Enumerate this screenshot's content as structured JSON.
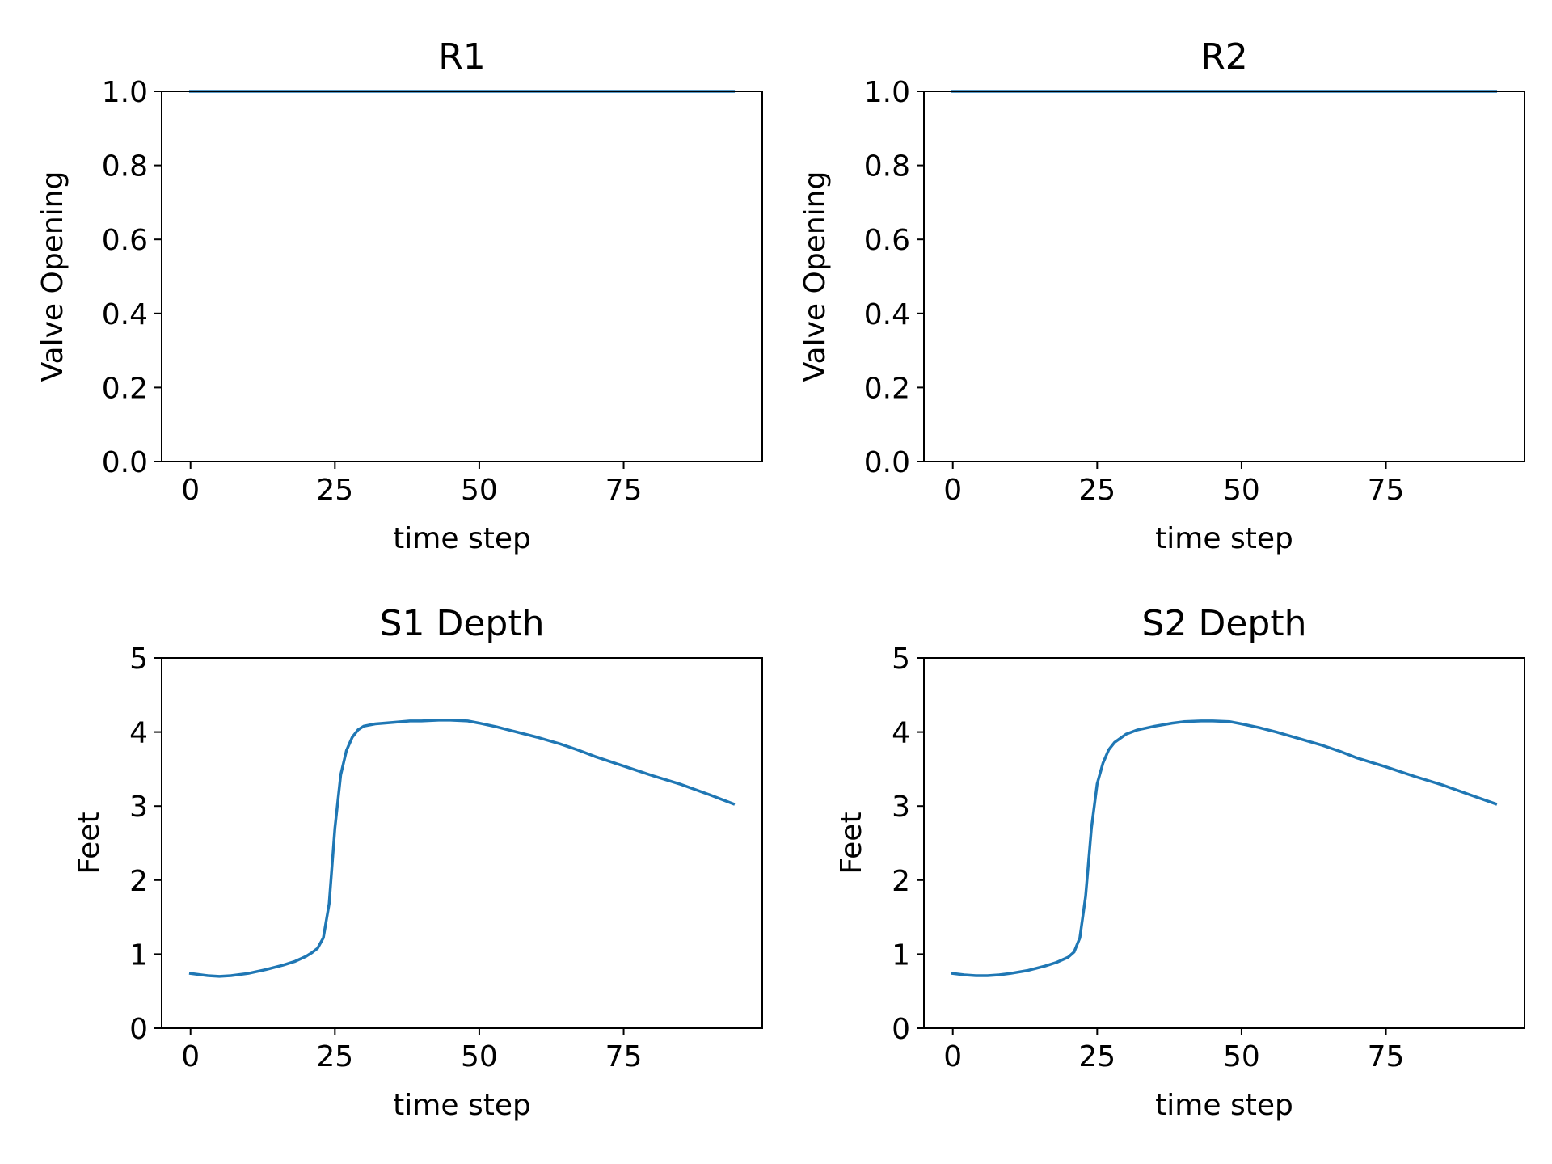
{
  "chart_data": [
    {
      "type": "line",
      "title": "R1",
      "xlabel": "time step",
      "ylabel": "Valve Opening",
      "xlim": [
        -5,
        99
      ],
      "ylim": [
        0.0,
        1.0
      ],
      "xticks": [
        0,
        25,
        50,
        75
      ],
      "xtick_labels": [
        "0",
        "25",
        "50",
        "75"
      ],
      "yticks": [
        0.0,
        0.2,
        0.4,
        0.6,
        0.8,
        1.0
      ],
      "ytick_labels": [
        "0.0",
        "0.2",
        "0.4",
        "0.6",
        "0.8",
        "1.0"
      ],
      "grid": false,
      "series": [
        {
          "color": "#1f77b4",
          "x": [
            0,
            94
          ],
          "y": [
            1.0,
            1.0
          ]
        }
      ]
    },
    {
      "type": "line",
      "title": "R2",
      "xlabel": "time step",
      "ylabel": "Valve Opening",
      "xlim": [
        -5,
        99
      ],
      "ylim": [
        0.0,
        1.0
      ],
      "xticks": [
        0,
        25,
        50,
        75
      ],
      "xtick_labels": [
        "0",
        "25",
        "50",
        "75"
      ],
      "yticks": [
        0.0,
        0.2,
        0.4,
        0.6,
        0.8,
        1.0
      ],
      "ytick_labels": [
        "0.0",
        "0.2",
        "0.4",
        "0.6",
        "0.8",
        "1.0"
      ],
      "grid": false,
      "series": [
        {
          "color": "#1f77b4",
          "x": [
            0,
            94
          ],
          "y": [
            1.0,
            1.0
          ]
        }
      ]
    },
    {
      "type": "line",
      "title": "S1 Depth",
      "xlabel": "time step",
      "ylabel": "Feet",
      "xlim": [
        -5,
        99
      ],
      "ylim": [
        0,
        5
      ],
      "xticks": [
        0,
        25,
        50,
        75
      ],
      "xtick_labels": [
        "0",
        "25",
        "50",
        "75"
      ],
      "yticks": [
        0,
        1,
        2,
        3,
        4,
        5
      ],
      "ytick_labels": [
        "0",
        "1",
        "2",
        "3",
        "4",
        "5"
      ],
      "grid": false,
      "series": [
        {
          "color": "#1f77b4",
          "x": [
            0,
            3,
            5,
            7,
            10,
            13,
            16,
            18,
            20,
            21,
            22,
            23,
            24,
            25,
            26,
            27,
            28,
            29,
            30,
            32,
            35,
            38,
            40,
            43,
            45,
            48,
            50,
            53,
            56,
            60,
            64,
            67,
            70,
            75,
            80,
            85,
            90,
            94
          ],
          "y": [
            0.74,
            0.71,
            0.7,
            0.71,
            0.74,
            0.79,
            0.85,
            0.9,
            0.97,
            1.02,
            1.08,
            1.22,
            1.68,
            2.7,
            3.42,
            3.75,
            3.93,
            4.03,
            4.08,
            4.11,
            4.13,
            4.15,
            4.15,
            4.16,
            4.16,
            4.15,
            4.12,
            4.07,
            4.01,
            3.93,
            3.84,
            3.76,
            3.67,
            3.54,
            3.41,
            3.29,
            3.15,
            3.03
          ]
        }
      ]
    },
    {
      "type": "line",
      "title": "S2 Depth",
      "xlabel": "time step",
      "ylabel": "Feet",
      "xlim": [
        -5,
        99
      ],
      "ylim": [
        0,
        5
      ],
      "xticks": [
        0,
        25,
        50,
        75
      ],
      "xtick_labels": [
        "0",
        "25",
        "50",
        "75"
      ],
      "yticks": [
        0,
        1,
        2,
        3,
        4,
        5
      ],
      "ytick_labels": [
        "0",
        "1",
        "2",
        "3",
        "4",
        "5"
      ],
      "grid": false,
      "series": [
        {
          "color": "#1f77b4",
          "x": [
            0,
            2,
            4,
            6,
            8,
            10,
            13,
            16,
            18,
            20,
            21,
            22,
            23,
            24,
            25,
            26,
            27,
            28,
            30,
            32,
            35,
            38,
            40,
            43,
            45,
            48,
            50,
            53,
            56,
            60,
            64,
            67,
            70,
            75,
            80,
            85,
            90,
            94
          ],
          "y": [
            0.74,
            0.72,
            0.71,
            0.71,
            0.72,
            0.74,
            0.78,
            0.84,
            0.89,
            0.96,
            1.03,
            1.22,
            1.78,
            2.7,
            3.3,
            3.58,
            3.76,
            3.86,
            3.97,
            4.03,
            4.08,
            4.12,
            4.14,
            4.15,
            4.15,
            4.14,
            4.11,
            4.06,
            4.0,
            3.91,
            3.82,
            3.74,
            3.65,
            3.53,
            3.4,
            3.28,
            3.14,
            3.03
          ]
        }
      ]
    }
  ]
}
